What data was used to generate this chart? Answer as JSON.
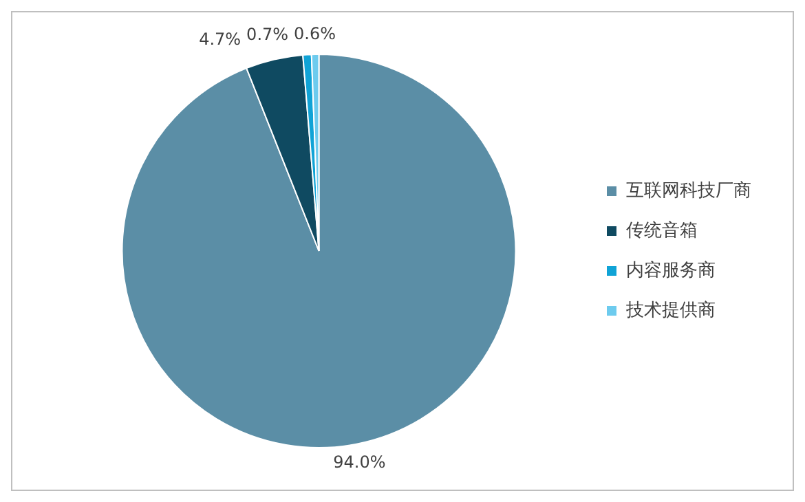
{
  "chart_data": {
    "type": "pie",
    "categories": [
      "互联网科技厂商",
      "传统音箱",
      "内容服务商",
      "技术提供商"
    ],
    "values": [
      94.0,
      4.7,
      0.7,
      0.6
    ],
    "colors": [
      "#5b8ea6",
      "#0f4a61",
      "#10a3d6",
      "#6dcbee"
    ],
    "value_labels": [
      "94.0%",
      "4.7%",
      "0.7%",
      "0.6%"
    ],
    "legend": "right"
  }
}
